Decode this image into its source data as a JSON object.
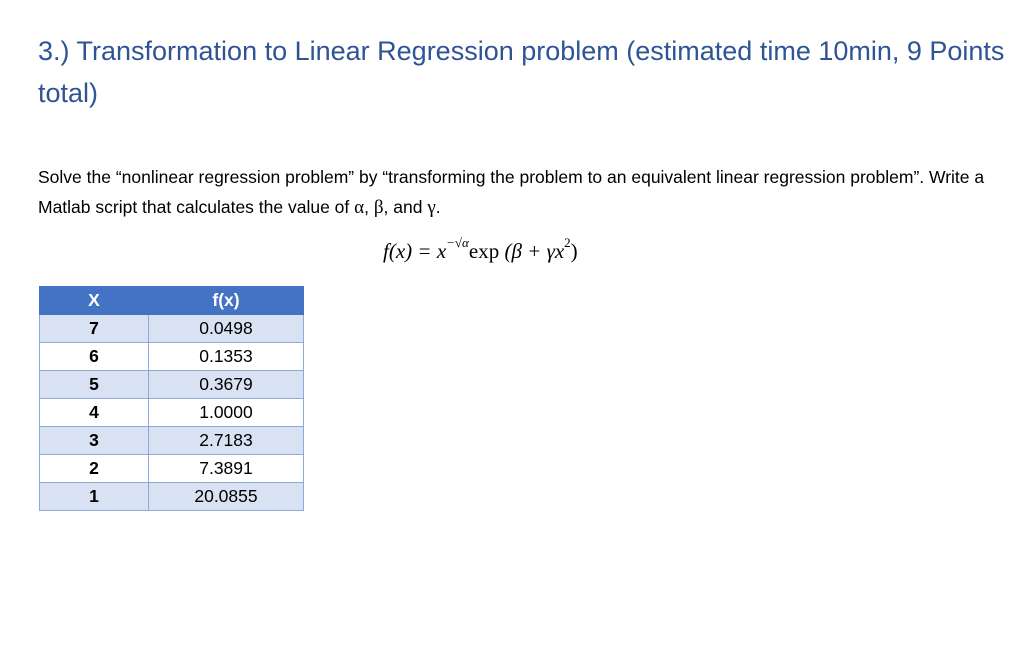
{
  "title": "3.) Transformation to Linear Regression problem (estimated time 10min, 9 Points total)",
  "body": {
    "text1": "Solve the “nonlinear regression problem” by “transforming the problem to an equivalent linear regression problem”. Write a Matlab script that calculates the value of ",
    "alpha": "α",
    "sep1": ", ",
    "beta": "β",
    "sep2": ", and ",
    "gamma": "γ",
    "end": "."
  },
  "formula": {
    "lhs": "f(x) = x",
    "exponent": "−√α",
    "exp": "exp",
    "arg": " (β + γx",
    "power": "2",
    "close": ")"
  },
  "table": {
    "headers": [
      "X",
      "f(x)"
    ],
    "rows": [
      [
        "7",
        "0.0498"
      ],
      [
        "6",
        "0.1353"
      ],
      [
        "5",
        "0.3679"
      ],
      [
        "4",
        "1.0000"
      ],
      [
        "3",
        "2.7183"
      ],
      [
        "2",
        "7.3891"
      ],
      [
        "1",
        "20.0855"
      ]
    ]
  }
}
